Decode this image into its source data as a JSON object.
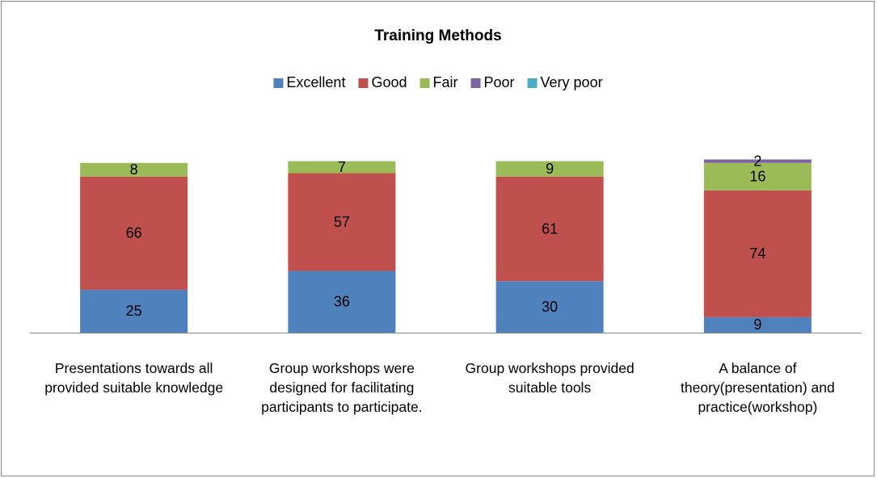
{
  "chart_data": {
    "type": "stacked_bar",
    "title": "Training Methods",
    "categories": [
      "Presentations towards all provided suitable knowledge",
      "Group workshops were designed for facilitating participants to participate.",
      "Group workshops provided suitable tools",
      "A balance of theory(presentation) and practice(workshop)"
    ],
    "series": [
      {
        "name": "Excellent",
        "color": "#4f81bd",
        "values": [
          25,
          36,
          30,
          9
        ]
      },
      {
        "name": "Good",
        "color": "#c0504d",
        "values": [
          66,
          57,
          61,
          74
        ]
      },
      {
        "name": "Fair",
        "color": "#9bbb59",
        "values": [
          8,
          7,
          9,
          16
        ]
      },
      {
        "name": "Poor",
        "color": "#8064a2",
        "values": [
          0,
          0,
          0,
          2
        ]
      },
      {
        "name": "Very poor",
        "color": "#4bacc6",
        "values": [
          0,
          0,
          0,
          0
        ]
      }
    ],
    "ylim": [
      0,
      105
    ],
    "legend": "top"
  }
}
